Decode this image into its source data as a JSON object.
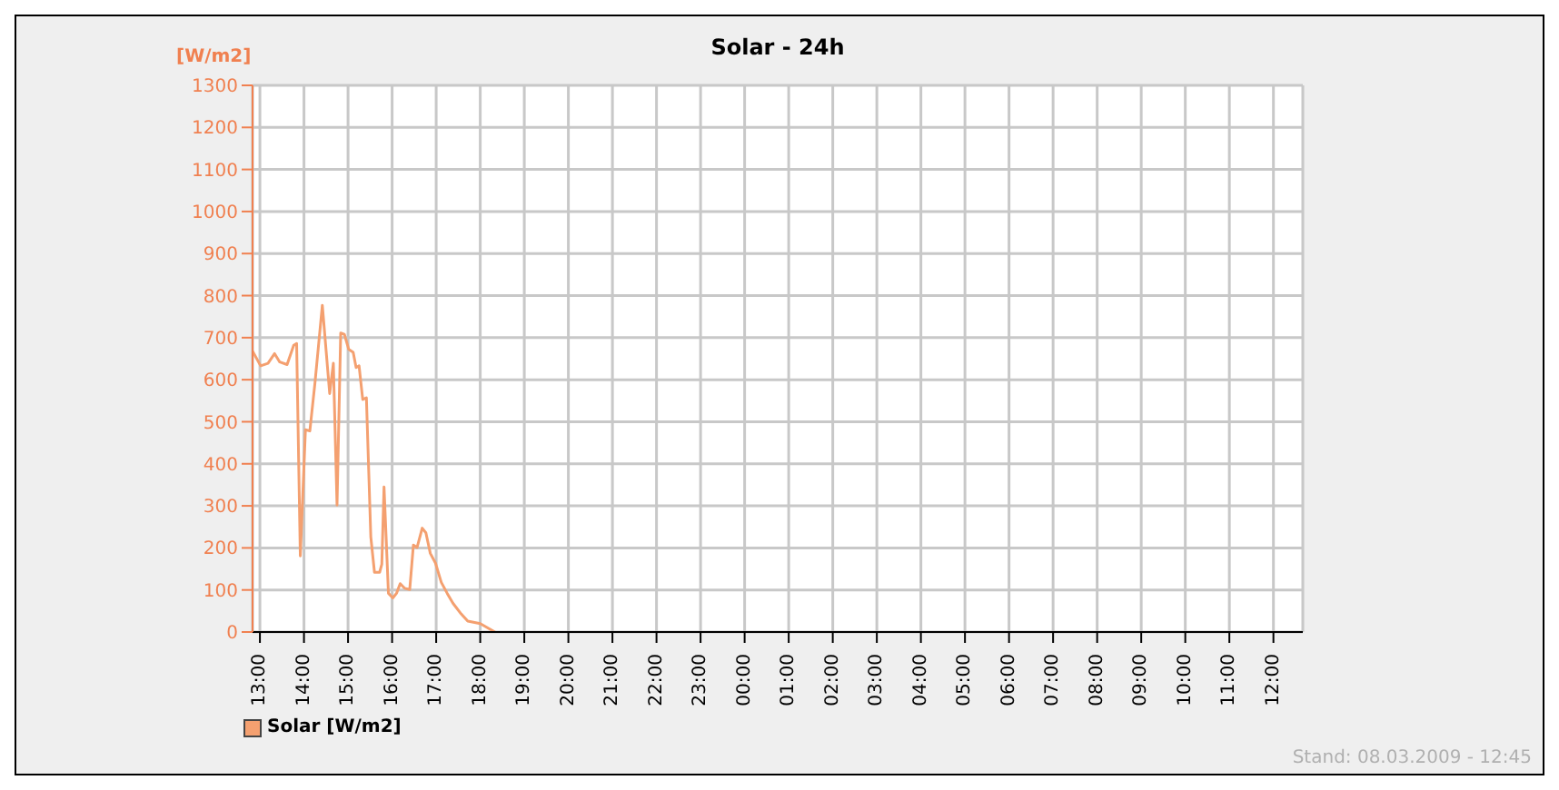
{
  "chart_data": {
    "type": "line",
    "title": "Solar - 24h",
    "ylabel": "[W/m2]",
    "annotations": [
      "Stand: 08.03.2009 - 12:45"
    ],
    "x": [
      "2009-03-07T12:50",
      "2009-03-07T13:01",
      "2009-03-07T13:11",
      "2009-03-07T13:20",
      "2009-03-07T13:27",
      "2009-03-07T13:37",
      "2009-03-07T13:46",
      "2009-03-07T13:50",
      "2009-03-07T13:55",
      "2009-03-07T14:02",
      "2009-03-07T14:08",
      "2009-03-07T14:15",
      "2009-03-07T14:25",
      "2009-03-07T14:35",
      "2009-03-07T14:40",
      "2009-03-07T14:45",
      "2009-03-07T14:50",
      "2009-03-07T14:55",
      "2009-03-07T15:01",
      "2009-03-07T15:07",
      "2009-03-07T15:11",
      "2009-03-07T15:15",
      "2009-03-07T15:20",
      "2009-03-07T15:25",
      "2009-03-07T15:31",
      "2009-03-07T15:36",
      "2009-03-07T15:43",
      "2009-03-07T15:46",
      "2009-03-07T15:49",
      "2009-03-07T15:55",
      "2009-03-07T16:01",
      "2009-03-07T16:06",
      "2009-03-07T16:11",
      "2009-03-07T16:17",
      "2009-03-07T16:24",
      "2009-03-07T16:29",
      "2009-03-07T16:34",
      "2009-03-07T16:41",
      "2009-03-07T16:46",
      "2009-03-07T16:52",
      "2009-03-07T16:59",
      "2009-03-07T17:07",
      "2009-03-07T17:15",
      "2009-03-07T17:23",
      "2009-03-07T17:34",
      "2009-03-07T17:43",
      "2009-03-07T18:00",
      "2009-03-07T18:20"
    ],
    "series": [
      {
        "name": "Solar [W/m2]",
        "color": "#f4a070",
        "values": [
          668,
          633,
          639,
          662,
          642,
          636,
          682,
          686,
          181,
          481,
          478,
          593,
          777,
          567,
          639,
          302,
          711,
          708,
          672,
          665,
          629,
          633,
          553,
          557,
          226,
          142,
          142,
          161,
          345,
          92,
          81,
          92,
          115,
          104,
          101,
          207,
          201,
          247,
          236,
          187,
          164,
          118,
          92,
          68,
          43,
          26,
          20,
          0
        ]
      }
    ],
    "xlim": [
      "2009-03-07T12:50",
      "2009-03-08T12:40"
    ],
    "xticks": [
      {
        "value": "2009-03-07T13:00",
        "label": "13:00"
      },
      {
        "value": "2009-03-07T14:00",
        "label": "14:00"
      },
      {
        "value": "2009-03-07T15:00",
        "label": "15:00"
      },
      {
        "value": "2009-03-07T16:00",
        "label": "16:00"
      },
      {
        "value": "2009-03-07T17:00",
        "label": "17:00"
      },
      {
        "value": "2009-03-07T18:00",
        "label": "18:00"
      },
      {
        "value": "2009-03-07T19:00",
        "label": "19:00"
      },
      {
        "value": "2009-03-07T20:00",
        "label": "20:00"
      },
      {
        "value": "2009-03-07T21:00",
        "label": "21:00"
      },
      {
        "value": "2009-03-07T22:00",
        "label": "22:00"
      },
      {
        "value": "2009-03-07T23:00",
        "label": "23:00"
      },
      {
        "value": "2009-03-08T00:00",
        "label": "00:00"
      },
      {
        "value": "2009-03-08T01:00",
        "label": "01:00"
      },
      {
        "value": "2009-03-08T02:00",
        "label": "02:00"
      },
      {
        "value": "2009-03-08T03:00",
        "label": "03:00"
      },
      {
        "value": "2009-03-08T04:00",
        "label": "04:00"
      },
      {
        "value": "2009-03-08T05:00",
        "label": "05:00"
      },
      {
        "value": "2009-03-08T06:00",
        "label": "06:00"
      },
      {
        "value": "2009-03-08T07:00",
        "label": "07:00"
      },
      {
        "value": "2009-03-08T08:00",
        "label": "08:00"
      },
      {
        "value": "2009-03-08T09:00",
        "label": "09:00"
      },
      {
        "value": "2009-03-08T10:00",
        "label": "10:00"
      },
      {
        "value": "2009-03-08T11:00",
        "label": "11:00"
      },
      {
        "value": "2009-03-08T12:00",
        "label": "12:00"
      }
    ],
    "ylim": [
      0,
      1300
    ],
    "yticks": [
      0,
      100,
      200,
      300,
      400,
      500,
      600,
      700,
      800,
      900,
      1000,
      1100,
      1200,
      1300
    ],
    "grid": true,
    "legend": "bottom left"
  }
}
